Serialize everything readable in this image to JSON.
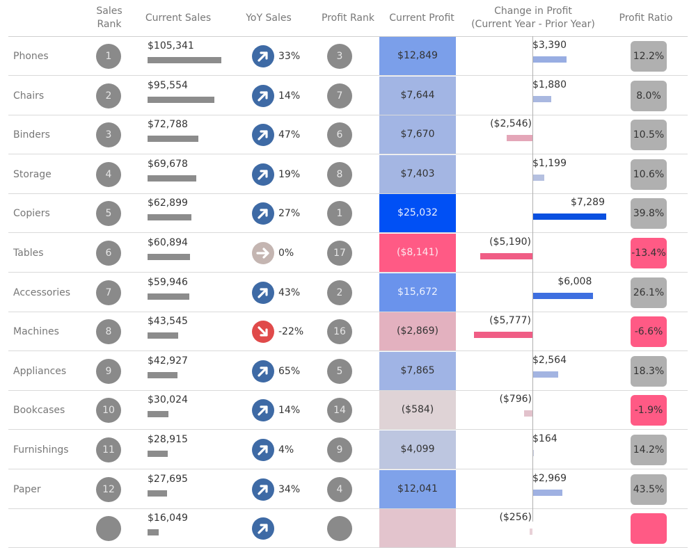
{
  "headers": {
    "sales_rank": "Sales\nRank",
    "current_sales": "Current Sales",
    "yoy_sales": "YoY Sales",
    "profit_rank": "Profit Rank",
    "current_profit": "Current Profit",
    "change_in_profit": "Change in Profit\n(Current Year - Prior Year)",
    "profit_ratio": "Profit Ratio"
  },
  "colors": {
    "rank_circle": "#8a8a8a",
    "sales_bar": "#8c8c8c",
    "up_icon": "#3e6aa5",
    "down_icon": "#e04a4a",
    "flat_icon": "#c4b5b1",
    "ratio_negative": "#ff5a85",
    "ratio_positive": "#b0b0b0"
  },
  "rows": [
    {
      "category": "Phones",
      "sales_rank": "1",
      "current_sales": "$105,341",
      "sales_value": 105341,
      "yoy_sales": "33%",
      "yoy_dir": "up",
      "profit_rank": "3",
      "current_profit": "$12,849",
      "profit_value": 12849,
      "profit_bg": "#7b9fea",
      "profit_fg": "#333333",
      "change_in_profit": "$3,390",
      "change_value": 3390,
      "change_color": "#98ade2",
      "profit_ratio": "12.2%",
      "ratio_negative": false
    },
    {
      "category": "Chairs",
      "sales_rank": "2",
      "current_sales": "$95,554",
      "sales_value": 95554,
      "yoy_sales": "14%",
      "yoy_dir": "up",
      "profit_rank": "7",
      "current_profit": "$7,644",
      "profit_value": 7644,
      "profit_bg": "#a2b5e4",
      "profit_fg": "#333333",
      "change_in_profit": "$1,880",
      "change_value": 1880,
      "change_color": "#a9b8e0",
      "profit_ratio": "8.0%",
      "ratio_negative": false
    },
    {
      "category": "Binders",
      "sales_rank": "3",
      "current_sales": "$72,788",
      "sales_value": 72788,
      "yoy_sales": "47%",
      "yoy_dir": "up",
      "profit_rank": "6",
      "current_profit": "$7,670",
      "profit_value": 7670,
      "profit_bg": "#a2b5e4",
      "profit_fg": "#333333",
      "change_in_profit": "($2,546)",
      "change_value": -2546,
      "change_color": "#e4a6b8",
      "profit_ratio": "10.5%",
      "ratio_negative": false
    },
    {
      "category": "Storage",
      "sales_rank": "4",
      "current_sales": "$69,678",
      "sales_value": 69678,
      "yoy_sales": "19%",
      "yoy_dir": "up",
      "profit_rank": "8",
      "current_profit": "$7,403",
      "profit_value": 7403,
      "profit_bg": "#a4b6e3",
      "profit_fg": "#333333",
      "change_in_profit": "$1,199",
      "change_value": 1199,
      "change_color": "#b5c0e0",
      "profit_ratio": "10.6%",
      "ratio_negative": false
    },
    {
      "category": "Copiers",
      "sales_rank": "5",
      "current_sales": "$62,899",
      "sales_value": 62899,
      "yoy_sales": "27%",
      "yoy_dir": "up",
      "profit_rank": "1",
      "current_profit": "$25,032",
      "profit_value": 25032,
      "profit_bg": "#0050f5",
      "profit_fg": "#e8eeff",
      "change_in_profit": "$7,289",
      "change_value": 7289,
      "change_color": "#0a50e0",
      "profit_ratio": "39.8%",
      "ratio_negative": false
    },
    {
      "category": "Tables",
      "sales_rank": "6",
      "current_sales": "$60,894",
      "sales_value": 60894,
      "yoy_sales": "0%",
      "yoy_dir": "flat",
      "profit_rank": "17",
      "current_profit": "($8,141)",
      "profit_value": -8141,
      "profit_bg": "#ff5a85",
      "profit_fg": "#fde6ec",
      "change_in_profit": "($5,190)",
      "change_value": -5190,
      "change_color": "#f05d85",
      "profit_ratio": "-13.4%",
      "ratio_negative": true
    },
    {
      "category": "Accessories",
      "sales_rank": "7",
      "current_sales": "$59,946",
      "sales_value": 59946,
      "yoy_sales": "43%",
      "yoy_dir": "up",
      "profit_rank": "2",
      "current_profit": "$15,672",
      "profit_value": 15672,
      "profit_bg": "#6a93ec",
      "profit_fg": "#eef2ff",
      "change_in_profit": "$6,008",
      "change_value": 6008,
      "change_color": "#3e6fe0",
      "profit_ratio": "26.1%",
      "ratio_negative": false
    },
    {
      "category": "Machines",
      "sales_rank": "8",
      "current_sales": "$43,545",
      "sales_value": 43545,
      "yoy_sales": "-22%",
      "yoy_dir": "down",
      "profit_rank": "16",
      "current_profit": "($2,869)",
      "profit_value": -2869,
      "profit_bg": "#e3b1bf",
      "profit_fg": "#333333",
      "change_in_profit": "($5,777)",
      "change_value": -5777,
      "change_color": "#f05d85",
      "profit_ratio": "-6.6%",
      "ratio_negative": true
    },
    {
      "category": "Appliances",
      "sales_rank": "9",
      "current_sales": "$42,927",
      "sales_value": 42927,
      "yoy_sales": "65%",
      "yoy_dir": "up",
      "profit_rank": "5",
      "current_profit": "$7,865",
      "profit_value": 7865,
      "profit_bg": "#a0b4e5",
      "profit_fg": "#333333",
      "change_in_profit": "$2,564",
      "change_value": 2564,
      "change_color": "#a3b4e1",
      "profit_ratio": "18.3%",
      "ratio_negative": false
    },
    {
      "category": "Bookcases",
      "sales_rank": "10",
      "current_sales": "$30,024",
      "sales_value": 30024,
      "yoy_sales": "14%",
      "yoy_dir": "up",
      "profit_rank": "14",
      "current_profit": "($584)",
      "profit_value": -584,
      "profit_bg": "#dfd3d6",
      "profit_fg": "#333333",
      "change_in_profit": "($796)",
      "change_value": -796,
      "change_color": "#e2c2cc",
      "profit_ratio": "-1.9%",
      "ratio_negative": true
    },
    {
      "category": "Furnishings",
      "sales_rank": "11",
      "current_sales": "$28,915",
      "sales_value": 28915,
      "yoy_sales": "4%",
      "yoy_dir": "up",
      "profit_rank": "9",
      "current_profit": "$4,099",
      "profit_value": 4099,
      "profit_bg": "#bdc6e0",
      "profit_fg": "#333333",
      "change_in_profit": "$164",
      "change_value": 164,
      "change_color": "#c8cde0",
      "profit_ratio": "14.2%",
      "ratio_negative": false
    },
    {
      "category": "Paper",
      "sales_rank": "12",
      "current_sales": "$27,695",
      "sales_value": 27695,
      "yoy_sales": "34%",
      "yoy_dir": "up",
      "profit_rank": "4",
      "current_profit": "$12,041",
      "profit_value": 12041,
      "profit_bg": "#7fa2ea",
      "profit_fg": "#333333",
      "change_in_profit": "$2,969",
      "change_value": 2969,
      "change_color": "#9fb1e2",
      "profit_ratio": "43.5%",
      "ratio_negative": false
    },
    {
      "category": "",
      "sales_rank": "",
      "current_sales": "$16,049",
      "sales_value": 16049,
      "yoy_sales": "",
      "yoy_dir": "up",
      "profit_rank": "",
      "current_profit": "",
      "profit_value": 0,
      "profit_bg": "#e3c4cd",
      "profit_fg": "#333333",
      "change_in_profit": "($256)",
      "change_value": -256,
      "change_color": "#e8d0d7",
      "profit_ratio": "",
      "ratio_negative": true
    }
  ]
}
